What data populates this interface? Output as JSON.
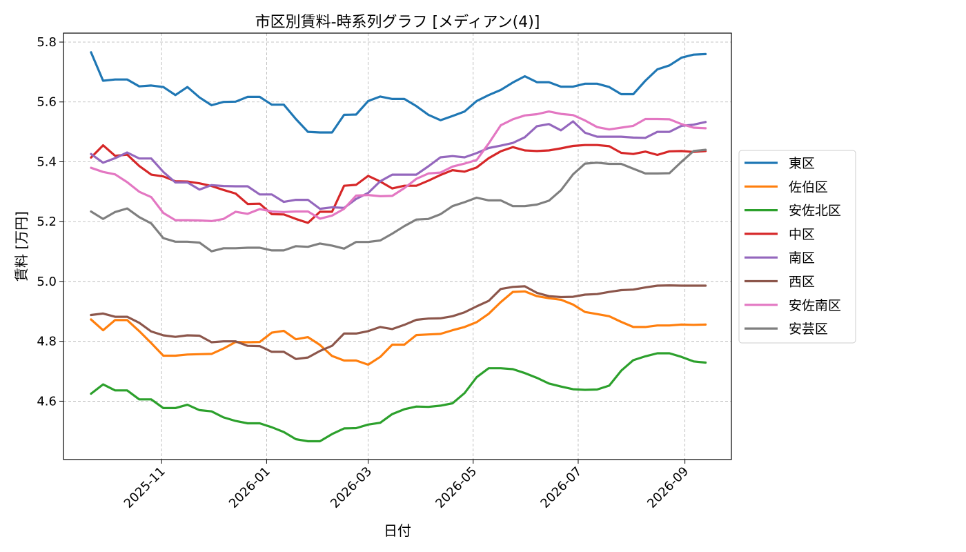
{
  "chart_data": {
    "type": "line",
    "title": "市区別賃料-時系列グラフ [メディアン(4)]",
    "xlabel": "日付",
    "ylabel": "賃料 [万円]",
    "xlim": [
      "2025-09-05",
      "2026-09-28"
    ],
    "ylim": [
      4.405,
      5.83
    ],
    "x_ticks": [
      "2025-11-01",
      "2026-01-01",
      "2026-03-01",
      "2026-05-01",
      "2026-07-01",
      "2026-09-01"
    ],
    "x_tick_labels": [
      "2025-11",
      "2026-01",
      "2026-03",
      "2026-05",
      "2026-07",
      "2026-09"
    ],
    "y_ticks": [
      4.6,
      4.8,
      5.0,
      5.2,
      5.4,
      5.6,
      5.8
    ],
    "y_tick_labels": [
      "4.6",
      "4.8",
      "5.0",
      "5.2",
      "5.4",
      "5.6",
      "5.8"
    ],
    "grid": true,
    "legend_position": "right-outside",
    "x": [
      "2025-09-21",
      "2025-09-28",
      "2025-10-05",
      "2025-10-12",
      "2025-10-19",
      "2025-10-26",
      "2025-11-02",
      "2025-11-09",
      "2025-11-16",
      "2025-11-23",
      "2025-11-30",
      "2025-12-07",
      "2025-12-14",
      "2025-12-21",
      "2025-12-28",
      "2026-01-04",
      "2026-01-11",
      "2026-01-18",
      "2026-01-25",
      "2026-02-01",
      "2026-02-08",
      "2026-02-15",
      "2026-02-22",
      "2026-03-01",
      "2026-03-08",
      "2026-03-15",
      "2026-03-22",
      "2026-03-29",
      "2026-04-05",
      "2026-04-12",
      "2026-04-19",
      "2026-04-26",
      "2026-05-03",
      "2026-05-10",
      "2026-05-17",
      "2026-05-24",
      "2026-05-31",
      "2026-06-07",
      "2026-06-14",
      "2026-06-21",
      "2026-06-28",
      "2026-07-05",
      "2026-07-12",
      "2026-07-19",
      "2026-07-26",
      "2026-08-02",
      "2026-08-09",
      "2026-08-16",
      "2026-08-23",
      "2026-08-30",
      "2026-09-06",
      "2026-09-13"
    ],
    "series": [
      {
        "name": "東区",
        "color": "#1f77b4",
        "values": [
          5.766,
          5.671,
          5.675,
          5.675,
          5.652,
          5.655,
          5.65,
          5.623,
          5.65,
          5.615,
          5.589,
          5.6,
          5.601,
          5.617,
          5.617,
          5.591,
          5.591,
          5.543,
          5.5,
          5.498,
          5.498,
          5.557,
          5.558,
          5.603,
          5.618,
          5.61,
          5.61,
          5.586,
          5.557,
          5.539,
          5.553,
          5.568,
          5.603,
          5.623,
          5.64,
          5.665,
          5.686,
          5.666,
          5.666,
          5.651,
          5.651,
          5.661,
          5.661,
          5.65,
          5.626,
          5.626,
          5.671,
          5.709,
          5.722,
          5.748,
          5.758,
          5.76
        ]
      },
      {
        "name": "佐伯区",
        "color": "#ff7f0e",
        "values": [
          4.873,
          4.837,
          4.871,
          4.871,
          4.834,
          4.794,
          4.752,
          4.752,
          4.756,
          4.757,
          4.758,
          4.776,
          4.798,
          4.797,
          4.798,
          4.829,
          4.835,
          4.807,
          4.814,
          4.788,
          4.751,
          4.736,
          4.736,
          4.722,
          4.748,
          4.789,
          4.789,
          4.821,
          4.823,
          4.825,
          4.837,
          4.848,
          4.864,
          4.892,
          4.931,
          4.965,
          4.967,
          4.951,
          4.944,
          4.939,
          4.923,
          4.898,
          4.891,
          4.884,
          4.865,
          4.848,
          4.848,
          4.853,
          4.853,
          4.856,
          4.855,
          4.856
        ]
      },
      {
        "name": "安佐北区",
        "color": "#2ca02c",
        "values": [
          4.625,
          4.656,
          4.636,
          4.636,
          4.606,
          4.606,
          4.577,
          4.577,
          4.588,
          4.57,
          4.566,
          4.546,
          4.534,
          4.526,
          4.526,
          4.513,
          4.497,
          4.473,
          4.466,
          4.466,
          4.49,
          4.509,
          4.51,
          4.522,
          4.528,
          4.557,
          4.573,
          4.582,
          4.581,
          4.585,
          4.593,
          4.627,
          4.68,
          4.71,
          4.71,
          4.707,
          4.694,
          4.678,
          4.659,
          4.649,
          4.64,
          4.638,
          4.639,
          4.652,
          4.702,
          4.737,
          4.75,
          4.76,
          4.76,
          4.748,
          4.733,
          4.729
        ]
      },
      {
        "name": "中区",
        "color": "#d62728",
        "values": [
          5.414,
          5.455,
          5.42,
          5.424,
          5.386,
          5.357,
          5.351,
          5.335,
          5.334,
          5.328,
          5.319,
          5.306,
          5.294,
          5.259,
          5.26,
          5.225,
          5.224,
          5.209,
          5.196,
          5.233,
          5.233,
          5.32,
          5.323,
          5.353,
          5.334,
          5.311,
          5.32,
          5.32,
          5.337,
          5.356,
          5.372,
          5.367,
          5.381,
          5.412,
          5.435,
          5.449,
          5.438,
          5.436,
          5.438,
          5.445,
          5.453,
          5.456,
          5.456,
          5.452,
          5.43,
          5.426,
          5.434,
          5.423,
          5.435,
          5.436,
          5.433,
          5.436
        ]
      },
      {
        "name": "南区",
        "color": "#9467bd",
        "values": [
          5.426,
          5.397,
          5.412,
          5.431,
          5.411,
          5.411,
          5.366,
          5.331,
          5.331,
          5.307,
          5.322,
          5.319,
          5.318,
          5.318,
          5.291,
          5.291,
          5.266,
          5.273,
          5.273,
          5.243,
          5.248,
          5.246,
          5.276,
          5.296,
          5.335,
          5.357,
          5.357,
          5.357,
          5.385,
          5.415,
          5.419,
          5.415,
          5.429,
          5.446,
          5.454,
          5.463,
          5.482,
          5.519,
          5.526,
          5.505,
          5.535,
          5.497,
          5.484,
          5.484,
          5.484,
          5.481,
          5.48,
          5.5,
          5.5,
          5.52,
          5.524,
          5.533
        ]
      },
      {
        "name": "西区",
        "color": "#8c564b",
        "values": [
          4.888,
          4.893,
          4.882,
          4.882,
          4.862,
          4.833,
          4.82,
          4.815,
          4.82,
          4.819,
          4.797,
          4.8,
          4.8,
          4.785,
          4.784,
          4.765,
          4.765,
          4.741,
          4.746,
          4.768,
          4.785,
          4.826,
          4.826,
          4.834,
          4.848,
          4.841,
          4.855,
          4.872,
          4.876,
          4.877,
          4.884,
          4.897,
          4.917,
          4.935,
          4.975,
          4.982,
          4.984,
          4.962,
          4.951,
          4.948,
          4.949,
          4.956,
          4.958,
          4.965,
          4.971,
          4.973,
          4.98,
          4.986,
          4.987,
          4.986,
          4.986,
          4.986
        ]
      },
      {
        "name": "安佐南区",
        "color": "#e377c2",
        "values": [
          5.38,
          5.366,
          5.358,
          5.332,
          5.3,
          5.282,
          5.229,
          5.205,
          5.205,
          5.204,
          5.202,
          5.209,
          5.233,
          5.226,
          5.242,
          5.234,
          5.232,
          5.234,
          5.234,
          5.21,
          5.22,
          5.243,
          5.287,
          5.289,
          5.285,
          5.286,
          5.312,
          5.343,
          5.361,
          5.364,
          5.384,
          5.394,
          5.406,
          5.461,
          5.522,
          5.542,
          5.555,
          5.559,
          5.568,
          5.56,
          5.556,
          5.538,
          5.516,
          5.508,
          5.514,
          5.52,
          5.543,
          5.543,
          5.542,
          5.526,
          5.514,
          5.512
        ]
      },
      {
        "name": "安芸区",
        "color": "#7f7f7f",
        "values": [
          5.234,
          5.209,
          5.232,
          5.244,
          5.215,
          5.194,
          5.145,
          5.133,
          5.133,
          5.13,
          5.101,
          5.111,
          5.111,
          5.113,
          5.113,
          5.104,
          5.104,
          5.118,
          5.116,
          5.127,
          5.12,
          5.11,
          5.132,
          5.132,
          5.137,
          5.16,
          5.185,
          5.207,
          5.209,
          5.225,
          5.252,
          5.265,
          5.28,
          5.271,
          5.271,
          5.252,
          5.252,
          5.257,
          5.27,
          5.305,
          5.358,
          5.394,
          5.397,
          5.393,
          5.393,
          5.377,
          5.361,
          5.361,
          5.362,
          5.4,
          5.436,
          5.44
        ]
      }
    ]
  }
}
